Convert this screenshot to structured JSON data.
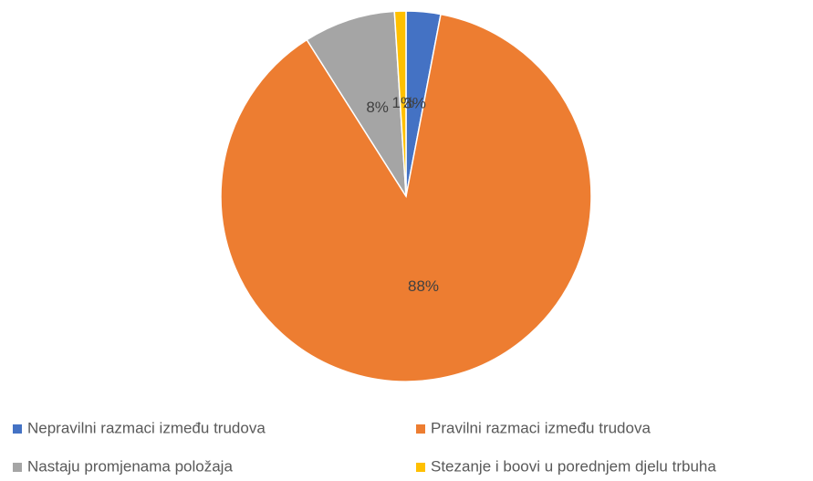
{
  "chart_data": {
    "type": "pie",
    "categories": [
      "Nepravilni razmaci između trudova",
      "Pravilni razmaci između trudova",
      "Nastaju promjenama položaja",
      "Stezanje i boovi u porednjem  djelu trbuha"
    ],
    "values": [
      3,
      88,
      8,
      1
    ],
    "value_labels": [
      "3%",
      "88%",
      "8%",
      "1%"
    ],
    "colors": [
      "#4472c4",
      "#ed7d31",
      "#a5a5a5",
      "#ffc000"
    ],
    "legend": "bottom"
  }
}
